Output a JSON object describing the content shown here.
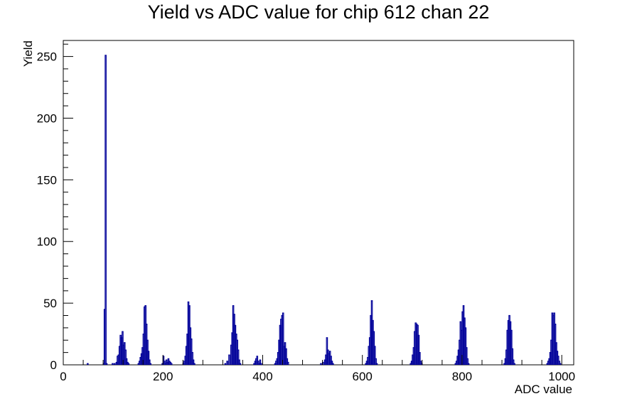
{
  "chart_data": {
    "type": "histogram",
    "title": "Yield vs ADC value for chip 612 chan 22",
    "xlabel": "ADC value",
    "ylabel": "Yield",
    "xlim": [
      0,
      1024
    ],
    "ylim": [
      0,
      263
    ],
    "x_ticks": [
      0,
      200,
      400,
      600,
      800,
      1000
    ],
    "y_ticks": [
      0,
      50,
      100,
      150,
      200,
      250
    ],
    "line_color": "#000099",
    "bin_width": 2,
    "grid": false,
    "legend": "none",
    "bins": [
      [
        48,
        1
      ],
      [
        80,
        1
      ],
      [
        82,
        45
      ],
      [
        84,
        251
      ],
      [
        86,
        1
      ],
      [
        98,
        1
      ],
      [
        102,
        1
      ],
      [
        106,
        2
      ],
      [
        108,
        7
      ],
      [
        110,
        8
      ],
      [
        112,
        15
      ],
      [
        114,
        24
      ],
      [
        116,
        22
      ],
      [
        118,
        27
      ],
      [
        120,
        16
      ],
      [
        122,
        18
      ],
      [
        124,
        12
      ],
      [
        126,
        5
      ],
      [
        128,
        2
      ],
      [
        130,
        1
      ],
      [
        150,
        1
      ],
      [
        152,
        3
      ],
      [
        154,
        6
      ],
      [
        156,
        9
      ],
      [
        158,
        14
      ],
      [
        160,
        25
      ],
      [
        162,
        47
      ],
      [
        164,
        48
      ],
      [
        166,
        33
      ],
      [
        168,
        20
      ],
      [
        170,
        11
      ],
      [
        172,
        4
      ],
      [
        174,
        1
      ],
      [
        198,
        1
      ],
      [
        200,
        7
      ],
      [
        202,
        3
      ],
      [
        204,
        1
      ],
      [
        206,
        4
      ],
      [
        208,
        2
      ],
      [
        210,
        5
      ],
      [
        212,
        3
      ],
      [
        214,
        2
      ],
      [
        216,
        1
      ],
      [
        240,
        1
      ],
      [
        242,
        3
      ],
      [
        244,
        7
      ],
      [
        246,
        15
      ],
      [
        248,
        25
      ],
      [
        250,
        51
      ],
      [
        252,
        48
      ],
      [
        254,
        30
      ],
      [
        256,
        21
      ],
      [
        258,
        10
      ],
      [
        260,
        4
      ],
      [
        262,
        1
      ],
      [
        324,
        1
      ],
      [
        328,
        3
      ],
      [
        332,
        8
      ],
      [
        336,
        16
      ],
      [
        338,
        26
      ],
      [
        340,
        48
      ],
      [
        342,
        41
      ],
      [
        344,
        32
      ],
      [
        346,
        25
      ],
      [
        348,
        20
      ],
      [
        350,
        12
      ],
      [
        352,
        4
      ],
      [
        354,
        1
      ],
      [
        382,
        1
      ],
      [
        384,
        3
      ],
      [
        386,
        5
      ],
      [
        388,
        7
      ],
      [
        390,
        3
      ],
      [
        392,
        1
      ],
      [
        394,
        4
      ],
      [
        396,
        1
      ],
      [
        424,
        1
      ],
      [
        426,
        3
      ],
      [
        428,
        5
      ],
      [
        430,
        10
      ],
      [
        432,
        20
      ],
      [
        434,
        32
      ],
      [
        436,
        37
      ],
      [
        438,
        40
      ],
      [
        440,
        42
      ],
      [
        442,
        15
      ],
      [
        444,
        18
      ],
      [
        446,
        13
      ],
      [
        448,
        5
      ],
      [
        450,
        2
      ],
      [
        516,
        1
      ],
      [
        520,
        2
      ],
      [
        524,
        4
      ],
      [
        526,
        8
      ],
      [
        528,
        22
      ],
      [
        530,
        12
      ],
      [
        532,
        9
      ],
      [
        534,
        11
      ],
      [
        536,
        7
      ],
      [
        538,
        3
      ],
      [
        540,
        1
      ],
      [
        606,
        1
      ],
      [
        608,
        3
      ],
      [
        610,
        6
      ],
      [
        612,
        15
      ],
      [
        614,
        22
      ],
      [
        616,
        40
      ],
      [
        618,
        52
      ],
      [
        620,
        36
      ],
      [
        622,
        27
      ],
      [
        624,
        15
      ],
      [
        626,
        5
      ],
      [
        628,
        1
      ],
      [
        696,
        1
      ],
      [
        698,
        3
      ],
      [
        700,
        8
      ],
      [
        702,
        14
      ],
      [
        704,
        27
      ],
      [
        706,
        34
      ],
      [
        708,
        33
      ],
      [
        710,
        32
      ],
      [
        712,
        24
      ],
      [
        714,
        10
      ],
      [
        716,
        3
      ],
      [
        718,
        1
      ],
      [
        786,
        1
      ],
      [
        788,
        3
      ],
      [
        790,
        7
      ],
      [
        792,
        12
      ],
      [
        794,
        20
      ],
      [
        796,
        35
      ],
      [
        798,
        28
      ],
      [
        800,
        43
      ],
      [
        802,
        48
      ],
      [
        804,
        38
      ],
      [
        806,
        30
      ],
      [
        808,
        14
      ],
      [
        810,
        5
      ],
      [
        812,
        1
      ],
      [
        884,
        1
      ],
      [
        886,
        5
      ],
      [
        888,
        12
      ],
      [
        890,
        28
      ],
      [
        892,
        36
      ],
      [
        894,
        40
      ],
      [
        896,
        35
      ],
      [
        898,
        28
      ],
      [
        900,
        13
      ],
      [
        902,
        4
      ],
      [
        904,
        1
      ],
      [
        970,
        1
      ],
      [
        972,
        3
      ],
      [
        974,
        5
      ],
      [
        976,
        10
      ],
      [
        978,
        20
      ],
      [
        980,
        42
      ],
      [
        982,
        40
      ],
      [
        984,
        42
      ],
      [
        986,
        33
      ],
      [
        988,
        18
      ],
      [
        990,
        11
      ],
      [
        992,
        7
      ],
      [
        994,
        3
      ],
      [
        996,
        1
      ]
    ]
  }
}
